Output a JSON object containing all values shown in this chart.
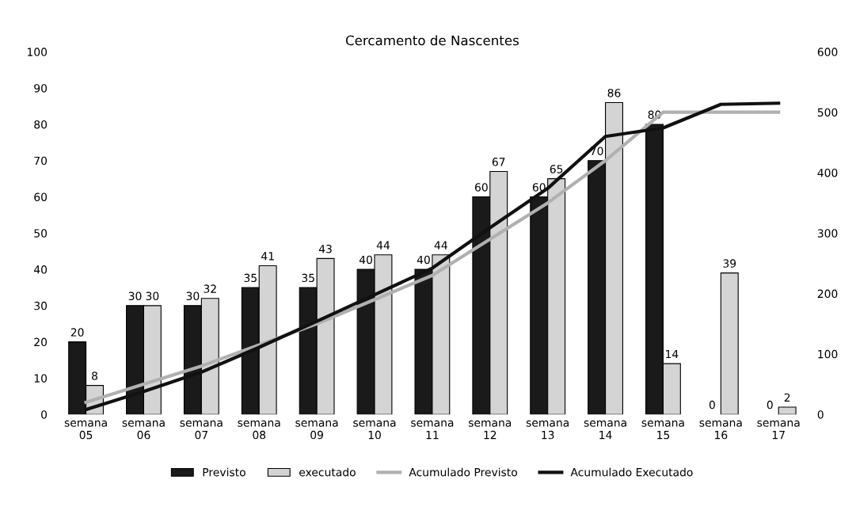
{
  "chart_data": {
    "type": "bar",
    "title": "Cercamento de Nascentes",
    "categories": [
      "semana\n05",
      "semana\n06",
      "semana\n07",
      "semana\n08",
      "semana\n09",
      "semana\n10",
      "semana\n11",
      "semana\n12",
      "semana\n13",
      "semana\n14",
      "semana\n15",
      "semana\n16",
      "semana\n17"
    ],
    "series": [
      {
        "name": "Previsto",
        "color": "#1a1a1a",
        "values": [
          20,
          30,
          30,
          35,
          35,
          40,
          40,
          60,
          60,
          70,
          80,
          0,
          0
        ],
        "value_labels": [
          "20",
          "30",
          "30",
          "35",
          "35",
          "40",
          "40",
          "60",
          "60",
          "70",
          "80",
          "0",
          "0"
        ]
      },
      {
        "name": "executado",
        "color": "#d4d4d4",
        "values": [
          8,
          30,
          32,
          41,
          43,
          44,
          44,
          67,
          65,
          86,
          14,
          39,
          2
        ],
        "value_labels": [
          "8",
          "30",
          "32",
          "41",
          "43",
          "44",
          "44",
          "67",
          "65",
          "86",
          "14",
          "39",
          "2"
        ]
      },
      {
        "name": "Acumulado Previsto",
        "type": "line",
        "axis": "y2",
        "color": "#b0b0b0",
        "values": [
          20,
          50,
          80,
          115,
          150,
          190,
          230,
          290,
          350,
          420,
          500,
          500,
          500
        ]
      },
      {
        "name": "Acumulado Executado",
        "type": "line",
        "axis": "y2",
        "color": "#111111",
        "values": [
          8,
          38,
          70,
          111,
          154,
          198,
          242,
          309,
          374,
          460,
          474,
          513,
          515
        ]
      }
    ],
    "ylim": [
      0,
      100
    ],
    "yticks": [
      0,
      10,
      20,
      30,
      40,
      50,
      60,
      70,
      80,
      90,
      100
    ],
    "y2lim": [
      0,
      600
    ],
    "y2ticks": [
      0,
      100,
      200,
      300,
      400,
      500,
      600
    ],
    "grid": false,
    "legend": "bottom"
  }
}
